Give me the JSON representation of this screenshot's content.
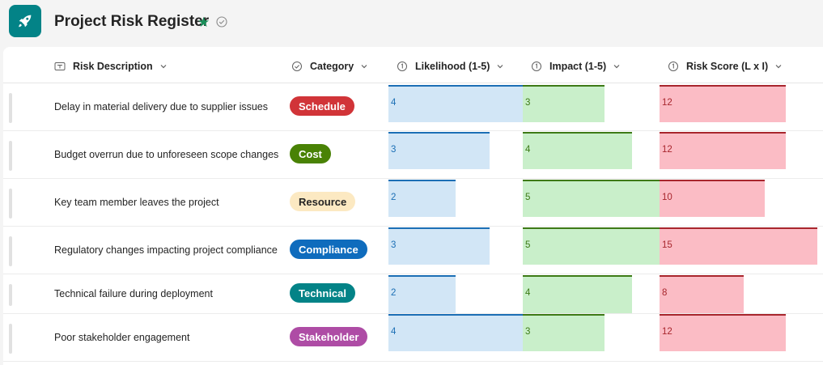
{
  "header": {
    "title": "Project Risk Register"
  },
  "columns": {
    "description": "Risk Description",
    "category": "Category",
    "likelihood": "Likelihood (1-5)",
    "impact": "Impact (1-5)",
    "score": "Risk Score (L x I)"
  },
  "colors": {
    "app_icon": "#038387",
    "likelihood_bar": "#d2e6f6",
    "impact_bar": "#c9efca",
    "score_bar": "#fbbcc5"
  },
  "rows": [
    {
      "description": "Delay in material delivery due to supplier issues",
      "category": "Schedule",
      "category_bg": "#d13438",
      "category_fg": "#ffffff",
      "likelihood": "4",
      "impact": "3",
      "score": "12"
    },
    {
      "description": "Budget overrun due to unforeseen scope changes",
      "category": "Cost",
      "category_bg": "#498205",
      "category_fg": "#ffffff",
      "likelihood": "3",
      "impact": "4",
      "score": "12"
    },
    {
      "description": "Key team member leaves the project",
      "category": "Resource",
      "category_bg": "#fce9c2",
      "category_fg": "#242424",
      "likelihood": "2",
      "impact": "5",
      "score": "10"
    },
    {
      "description": "Regulatory changes impacting project compliance",
      "category": "Compliance",
      "category_bg": "#0f6cbd",
      "category_fg": "#ffffff",
      "likelihood": "3",
      "impact": "5",
      "score": "15"
    },
    {
      "description": "Technical failure during deployment",
      "category": "Technical",
      "category_bg": "#038387",
      "category_fg": "#ffffff",
      "likelihood": "2",
      "impact": "4",
      "score": "8"
    },
    {
      "description": "Poor stakeholder engagement",
      "category": "Stakeholder",
      "category_bg": "#ae4ca5",
      "category_fg": "#ffffff",
      "likelihood": "4",
      "impact": "3",
      "score": "12"
    }
  ]
}
